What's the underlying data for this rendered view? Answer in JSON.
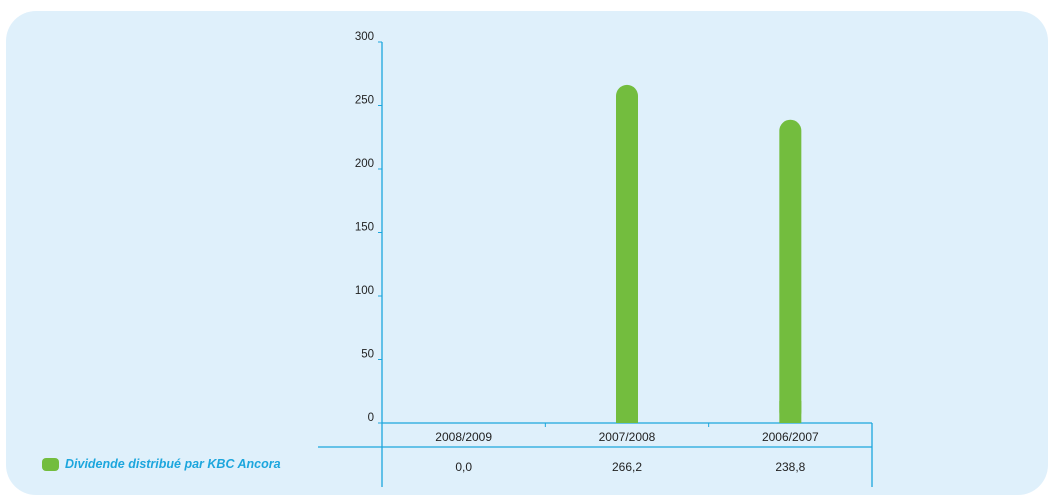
{
  "colors": {
    "axis": "#1ca6dd",
    "bar": "#73bd3e",
    "panel": "#dff0fb",
    "text": "#222222"
  },
  "legend": {
    "label": "Dividende distribué par KBC Ancora"
  },
  "chart_data": {
    "type": "bar",
    "categories": [
      "2008/2009",
      "2007/2008",
      "2006/2007"
    ],
    "series": [
      {
        "name": "Dividende distribué par KBC Ancora",
        "values": [
          0.0,
          266.2,
          238.8
        ]
      }
    ],
    "value_labels": [
      "0,0",
      "266,2",
      "238,8"
    ],
    "yticks": [
      0,
      50,
      100,
      150,
      200,
      250,
      300
    ],
    "ylim": [
      0,
      300
    ],
    "grid": false,
    "legend_position": "bottom-left"
  }
}
